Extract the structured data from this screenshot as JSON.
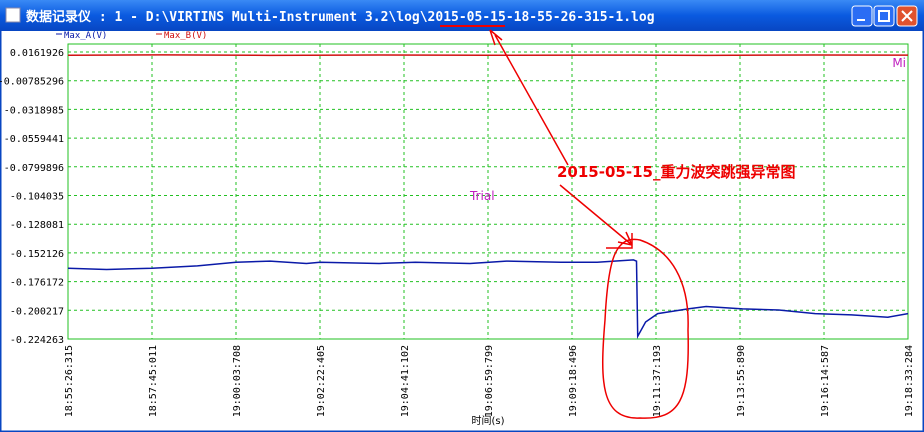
{
  "window": {
    "title": "数据记录仪 : 1 - D:\\VIRTINS Multi-Instrument 3.2\\log\\2015-05-15-18-55-26-315-1.log"
  },
  "chart_data": {
    "type": "line",
    "x_label": "时间(s)",
    "xlim": [
      "18:55:26:315",
      "19:18:33:284"
    ],
    "xticks": [
      "18:55:26:315",
      "18:57:45:011",
      "19:00:03:708",
      "19:02:22:405",
      "19:04:41:102",
      "19:06:59:799",
      "19:09:18:496",
      "19:11:37:193",
      "19:13:55:890",
      "19:16:14:587",
      "19:18:33:284"
    ],
    "ylim": [
      -0.224263,
      0.0161926
    ],
    "yticks": [
      0.0161926,
      -0.00785296,
      -0.0318985,
      -0.0559441,
      -0.0799896,
      -0.104035,
      -0.128081,
      -0.152126,
      -0.176172,
      -0.200217,
      -0.224263
    ],
    "grid": true,
    "series": [
      {
        "name": "Max_A(V)",
        "color": "#0a1aa8",
        "x": [
          "18:55:26:315",
          "18:56:30:000",
          "18:57:45:011",
          "18:59:00:000",
          "19:00:03:708",
          "19:01:00:000",
          "19:02:00:000",
          "19:02:22:405",
          "19:04:00:000",
          "19:05:00:000",
          "19:06:30:000",
          "19:07:30:000",
          "19:09:00:000",
          "19:10:00:000",
          "19:11:00:000",
          "19:11:05:000",
          "19:11:07:000",
          "19:11:20:000",
          "19:11:40:000",
          "19:12:30:000",
          "19:13:00:000",
          "19:14:00:000",
          "19:15:00:000",
          "19:16:00:000",
          "19:17:00:000",
          "19:18:00:000",
          "19:18:33:284"
        ],
        "values": [
          -0.165,
          -0.166,
          -0.165,
          -0.163,
          -0.16,
          -0.159,
          -0.161,
          -0.16,
          -0.161,
          -0.16,
          -0.161,
          -0.159,
          -0.16,
          -0.16,
          -0.158,
          -0.159,
          -0.222,
          -0.21,
          -0.203,
          -0.199,
          -0.197,
          -0.199,
          -0.2,
          -0.203,
          -0.204,
          -0.206,
          -0.203
        ]
      },
      {
        "name": "Max_B(V)",
        "color": "#d01010",
        "x": [
          "18:55:26:315",
          "18:58:00:000",
          "19:01:00:000",
          "19:04:00:000",
          "19:07:00:000",
          "19:10:00:000",
          "19:13:00:000",
          "19:16:00:000",
          "19:18:33:284"
        ],
        "values": [
          0.0135,
          0.0138,
          0.0134,
          0.0137,
          0.0135,
          0.0136,
          0.0134,
          0.0137,
          0.0136
        ]
      }
    ],
    "annotations": [
      "Trial",
      "2015-05-15_重力波突跳强异常图",
      "Mi"
    ]
  }
}
